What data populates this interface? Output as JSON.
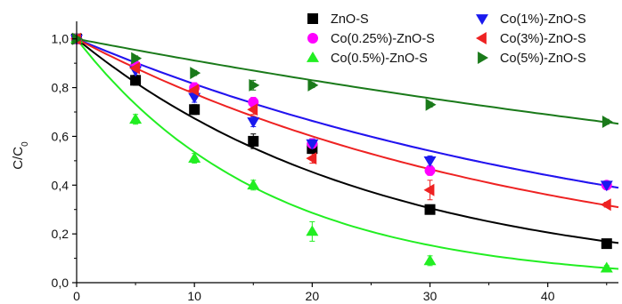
{
  "chart_data": {
    "type": "scatter",
    "xlabel": "",
    "ylabel": "C/C",
    "ylabel_sub": "0",
    "xlim": [
      0,
      46
    ],
    "ylim": [
      0,
      1.05
    ],
    "x_ticks": [
      0,
      10,
      20,
      30,
      40
    ],
    "x_tick_labels": [
      "0",
      "10",
      "20",
      "30",
      "40"
    ],
    "y_ticks": [
      0,
      0.2,
      0.4,
      0.6,
      0.8,
      1.0
    ],
    "y_tick_labels": [
      "0,0",
      "0,2",
      "0,4",
      "0,6",
      "0,8",
      "1,0"
    ],
    "grid": false,
    "legend_position": "top-right",
    "fit_lines": true,
    "series": [
      {
        "name": "ZnO-S",
        "marker": "square",
        "color": "#000000",
        "x": [
          0,
          5,
          10,
          15,
          20,
          30,
          45
        ],
        "y": [
          1.0,
          0.83,
          0.71,
          0.58,
          0.55,
          0.3,
          0.16
        ],
        "err": [
          0,
          0.02,
          0.02,
          0.03,
          0.02,
          0.01,
          0.01
        ],
        "fit_k": 0.0395
      },
      {
        "name": "Co(0.25%)-ZnO-S",
        "marker": "circle",
        "color": "#ff00ff",
        "x": [
          0,
          5,
          10,
          15,
          20,
          30,
          45
        ],
        "y": [
          1.0,
          0.89,
          0.8,
          0.74,
          0.57,
          0.46,
          0.4
        ],
        "err": [
          0,
          0.01,
          0.02,
          0.02,
          0.02,
          0.02,
          0.01
        ],
        "fit_k": 0.0205
      },
      {
        "name": "Co(0.5%)-ZnO-S",
        "marker": "triangle-up",
        "color": "#22ee22",
        "x": [
          0,
          5,
          10,
          15,
          20,
          30,
          45
        ],
        "y": [
          1.0,
          0.67,
          0.51,
          0.4,
          0.21,
          0.09,
          0.06
        ],
        "err": [
          0,
          0.02,
          0.02,
          0.02,
          0.04,
          0.02,
          0.01
        ],
        "fit_k": 0.0625
      },
      {
        "name": "Co(1%)-ZnO-S",
        "marker": "triangle-down",
        "color": "#1a1aee",
        "x": [
          0,
          5,
          10,
          15,
          20,
          30,
          45
        ],
        "y": [
          1.0,
          0.87,
          0.76,
          0.66,
          0.57,
          0.5,
          0.4
        ],
        "err": [
          0,
          0.02,
          0.02,
          0.02,
          0.02,
          0.02,
          0.01
        ],
        "fit_k": 0.0205
      },
      {
        "name": "Co(3%)-ZnO-S",
        "marker": "triangle-left",
        "color": "#ee2222",
        "x": [
          0,
          5,
          10,
          15,
          20,
          30,
          45
        ],
        "y": [
          1.0,
          0.88,
          0.79,
          0.71,
          0.51,
          0.38,
          0.32
        ],
        "err": [
          0,
          0.01,
          0.02,
          0.02,
          0.02,
          0.04,
          0.01
        ],
        "fit_k": 0.0255
      },
      {
        "name": "Co(5%)-ZnO-S",
        "marker": "triangle-right",
        "color": "#1a7a1a",
        "x": [
          0,
          5,
          10,
          15,
          20,
          30,
          45
        ],
        "y": [
          1.0,
          0.92,
          0.86,
          0.81,
          0.81,
          0.73,
          0.66
        ],
        "err": [
          0,
          0.01,
          0.01,
          0.02,
          0.01,
          0.01,
          0.01
        ],
        "fit_k": 0.0093
      }
    ]
  }
}
